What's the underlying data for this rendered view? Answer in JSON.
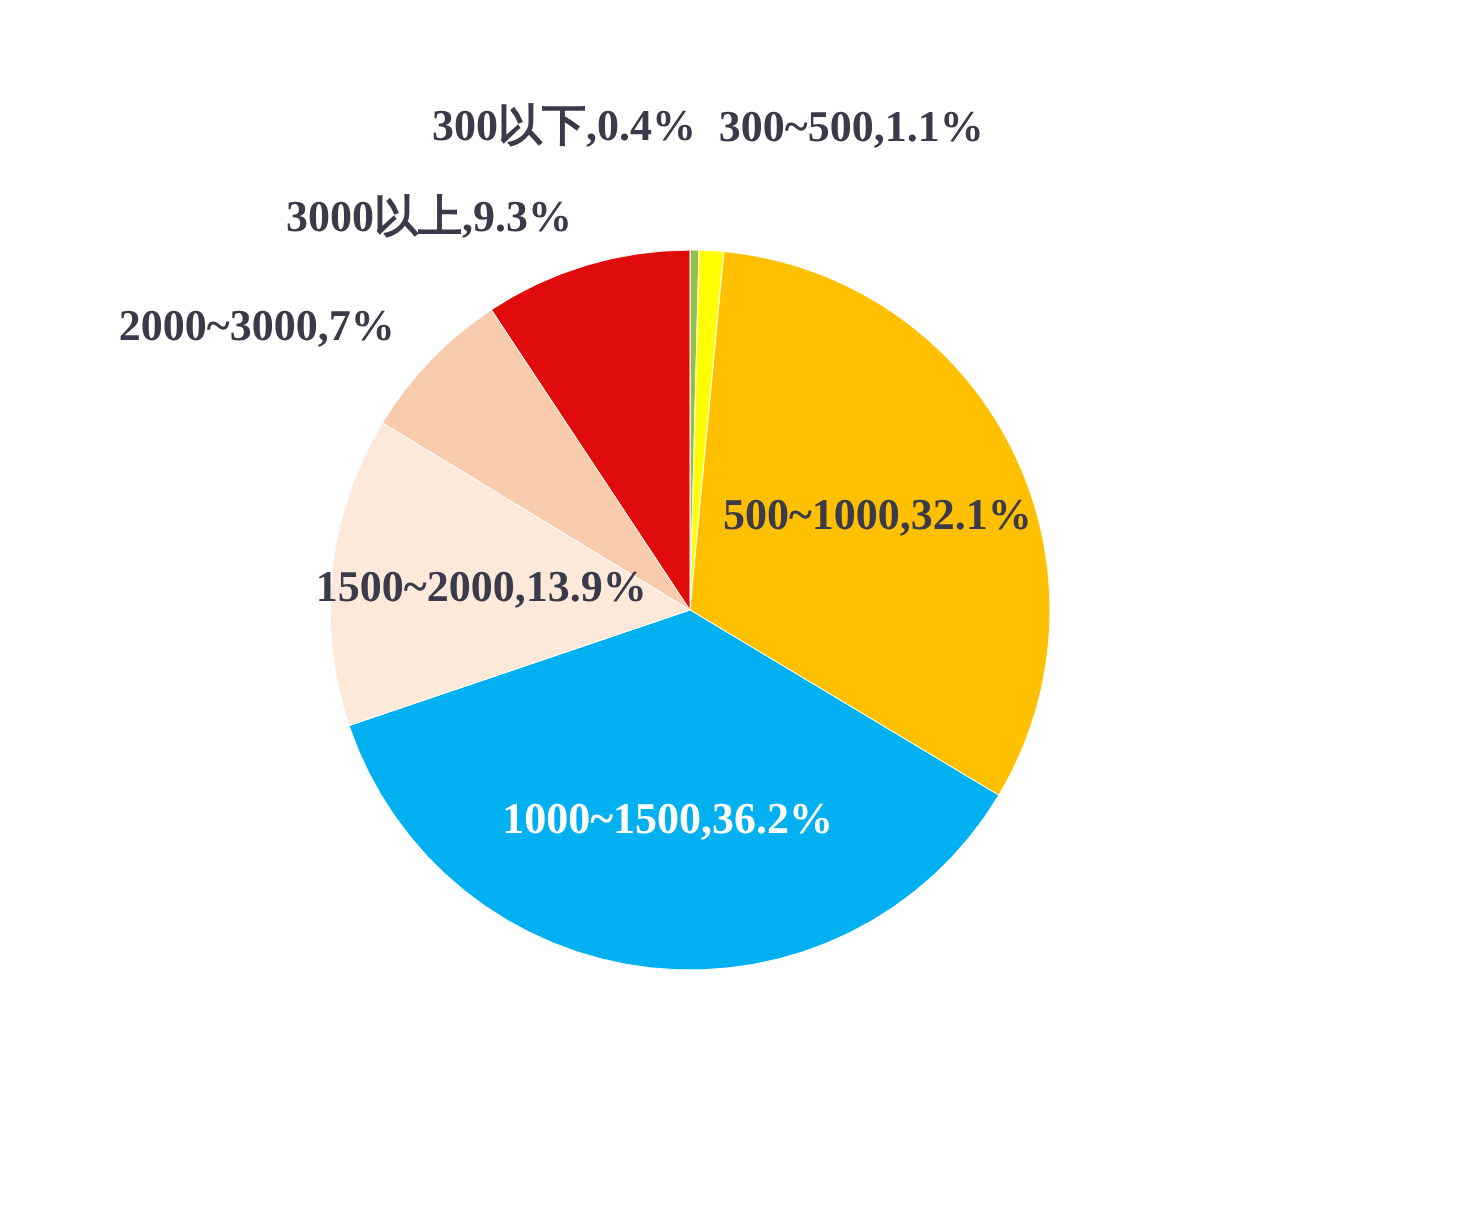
{
  "chart_data": {
    "type": "pie",
    "categories": [
      "300以下",
      "300~500",
      "500~1000",
      "1000~1500",
      "1500~2000",
      "2000~3000",
      "3000以上"
    ],
    "values": [
      0.4,
      1.1,
      32.1,
      36.2,
      13.9,
      7,
      9.3
    ],
    "value_labels": [
      "0.4%",
      "1.1%",
      "32.1%",
      "36.2%",
      "13.9%",
      "7%",
      "9.3%"
    ],
    "colors": [
      "#92c04a",
      "#ffff00",
      "#ffc000",
      "#00b0f0",
      "#fde9d9",
      "#f8cbad",
      "#e00b0b"
    ]
  }
}
